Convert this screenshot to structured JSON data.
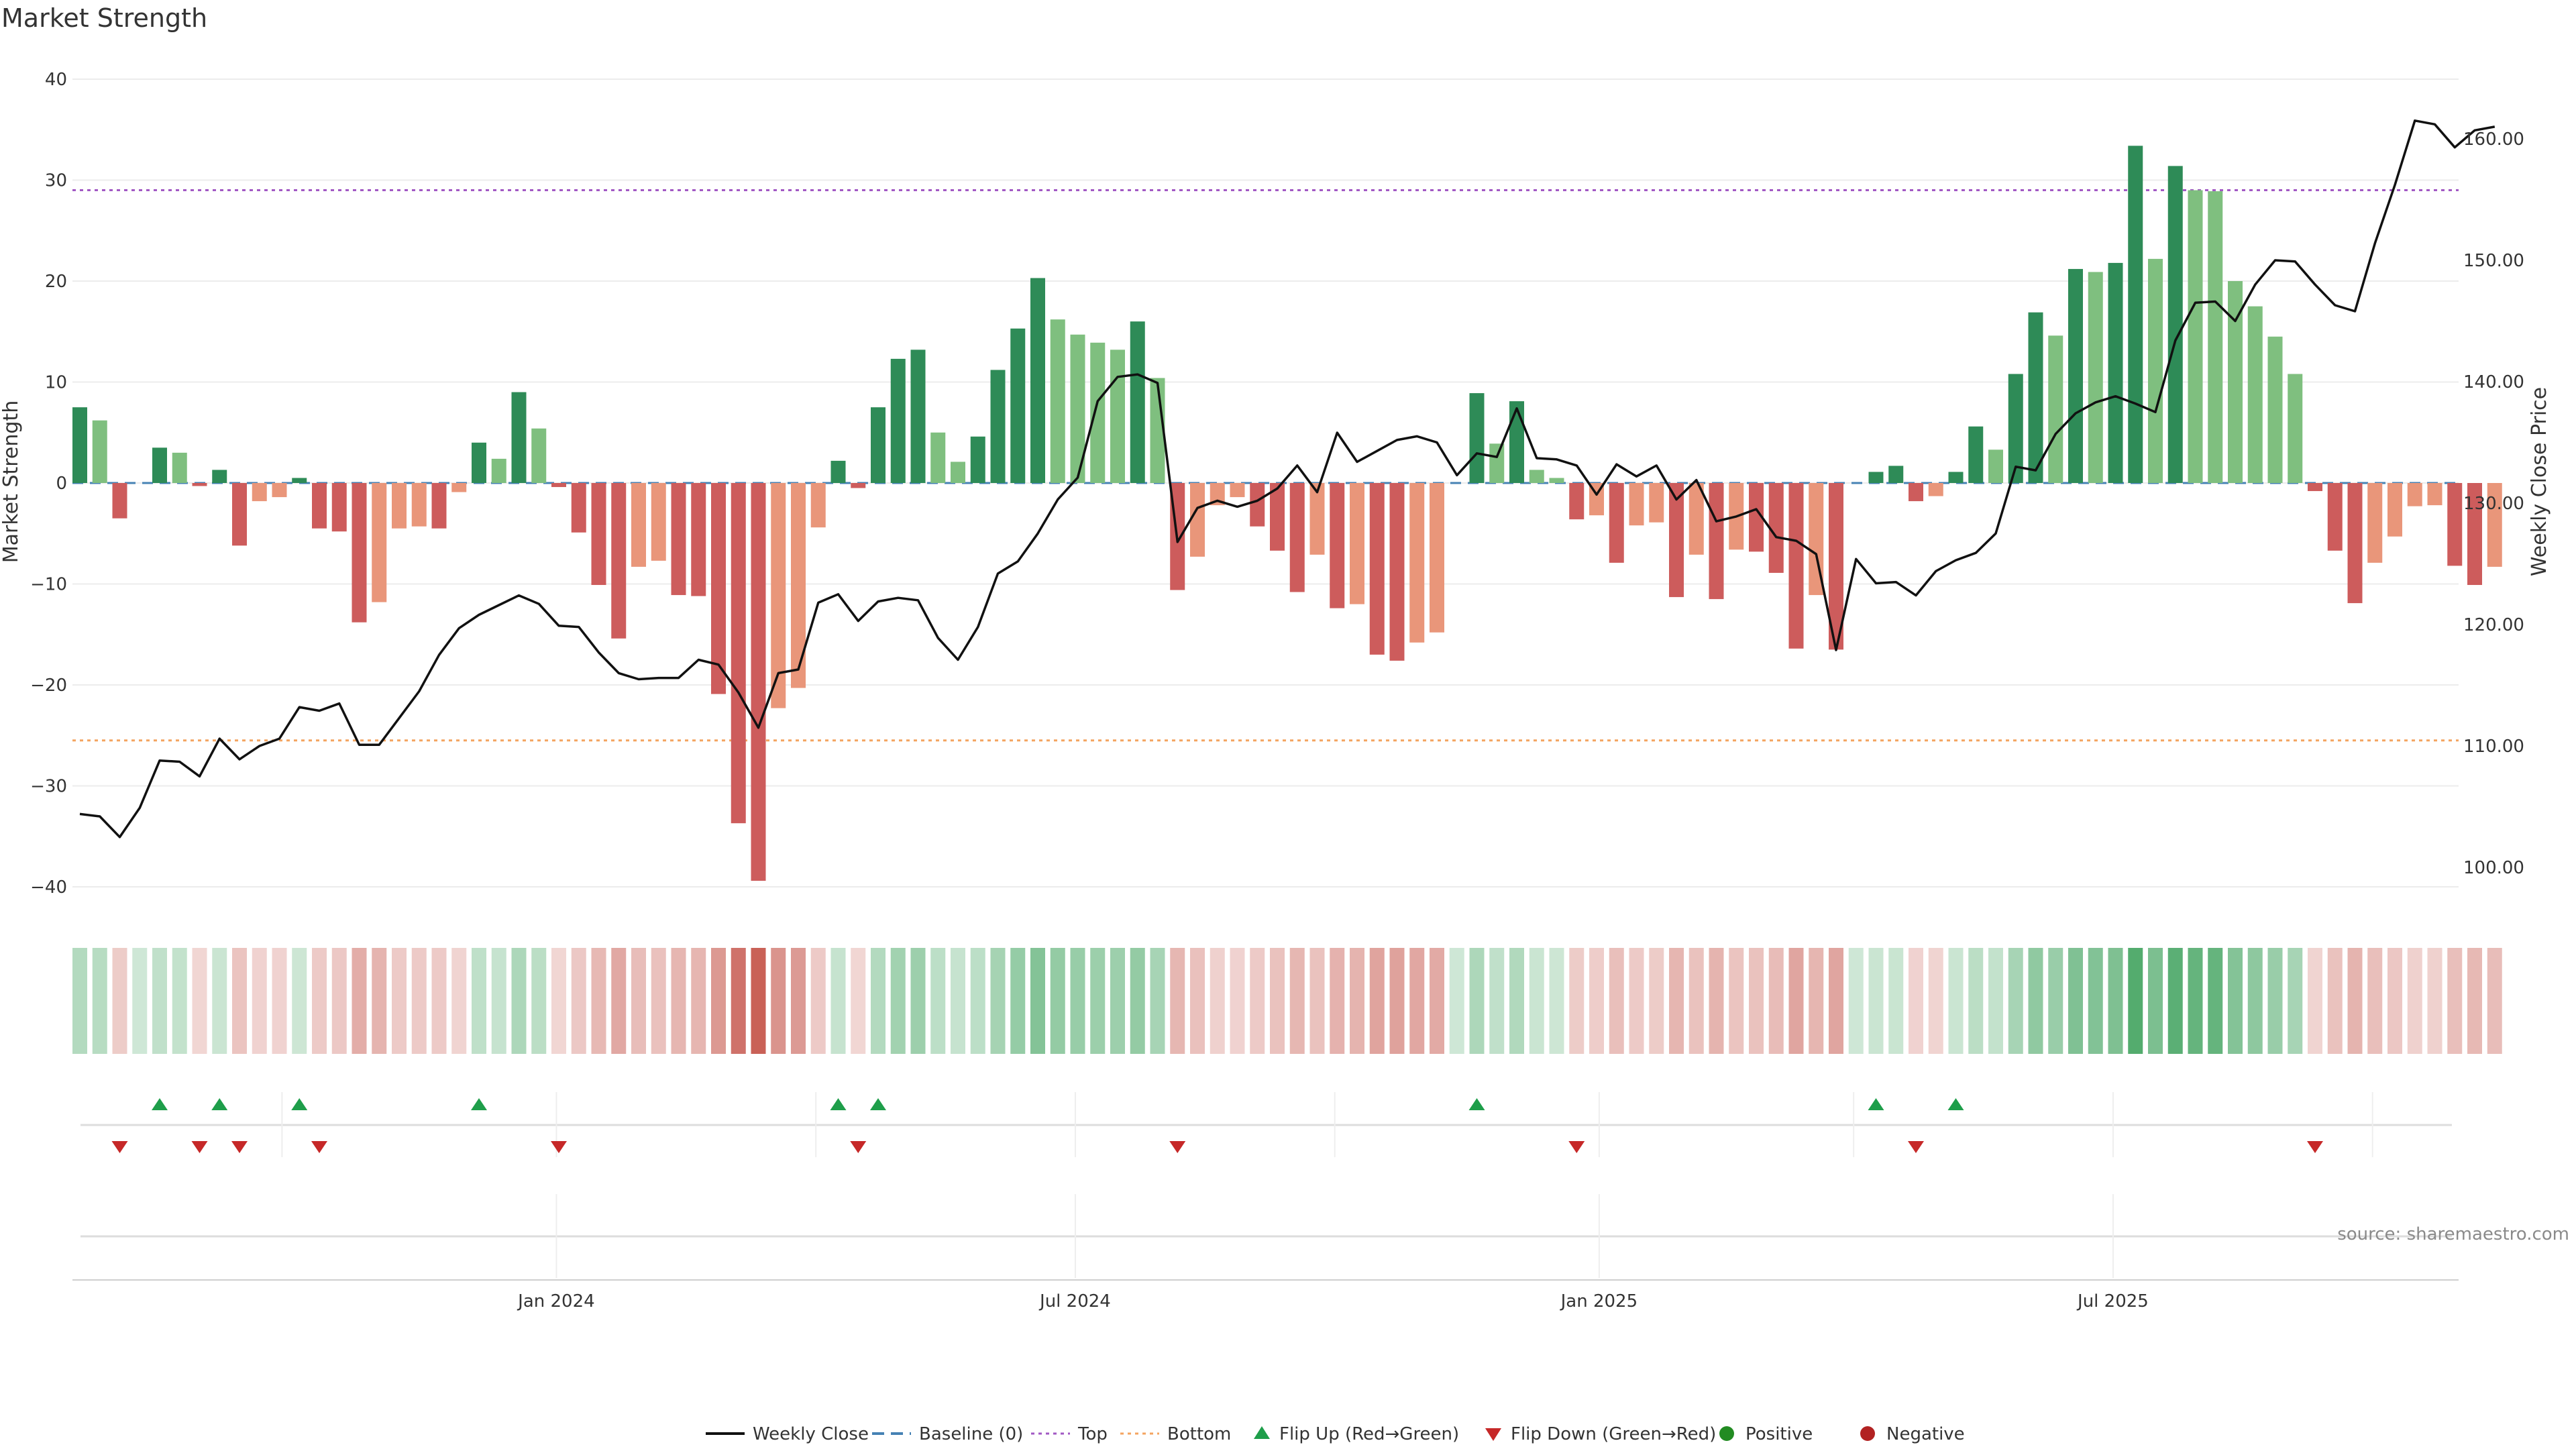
{
  "chart_data": {
    "type": "bar",
    "title": "Market Strength",
    "ylabel_left": "Market Strength",
    "ylabel_right": "Weekly Close Price",
    "ylim_left": [
      -43,
      43
    ],
    "yticks_left": [
      40,
      30,
      20,
      10,
      0,
      -10,
      -20,
      -30,
      -40
    ],
    "ytick_labels_left": [
      "40",
      "30",
      "20",
      "10",
      "0",
      "−10",
      "−20",
      "−30",
      "−40"
    ],
    "ylim_right": [
      95,
      165
    ],
    "yticks_right": [
      100,
      110,
      120,
      130,
      140,
      150,
      160
    ],
    "ytick_labels_right": [
      "100.00",
      "110.00",
      "120.00",
      "130.00",
      "140.00",
      "150.00",
      "160.00"
    ],
    "x_ticks": [
      {
        "label": "Jan 2024",
        "week": 24.25
      },
      {
        "label": "Jul 2024",
        "week": 50.25
      },
      {
        "label": "Jan 2025",
        "week": 76.5
      },
      {
        "label": "Jul 2025",
        "week": 102.25
      }
    ],
    "top_level": 29,
    "bottom_level": -25.5,
    "baseline": 0,
    "grid": true,
    "legend_position": "bottom",
    "source": "source: sharemaestro.com",
    "strength": [
      7.5,
      6.2,
      -3.5,
      0,
      3.5,
      3,
      -0.3,
      1.3,
      -6.2,
      -1.8,
      -1.4,
      0.5,
      -4.5,
      -4.8,
      -13.8,
      -11.8,
      -4.5,
      -4.3,
      -4.5,
      -0.9,
      4,
      2.4,
      9,
      5.4,
      -0.4,
      -4.9,
      -10.1,
      -15.4,
      -8.3,
      -7.7,
      -11.1,
      -11.2,
      -20.9,
      -33.7,
      -39.4,
      -22.3,
      -20.3,
      -4.4,
      2.2,
      -0.5,
      7.5,
      12.3,
      13.2,
      5,
      2.1,
      4.6,
      11.2,
      15.3,
      20.3,
      16.2,
      14.7,
      13.9,
      13.2,
      16,
      10.4,
      -10.6,
      -7.3,
      -2.2,
      -1.4,
      -4.3,
      -6.7,
      -10.8,
      -7.1,
      -12.4,
      -12,
      -17,
      -17.6,
      -15.8,
      -14.8,
      0,
      8.9,
      3.9,
      8.1,
      1.3,
      0.5,
      -3.6,
      -3.2,
      -7.9,
      -4.2,
      -3.9,
      -11.3,
      -7.1,
      -11.5,
      -6.6,
      -6.8,
      -8.9,
      -16.4,
      -11.1,
      -16.5,
      0,
      1.1,
      1.7,
      -1.8,
      -1.3,
      1.1,
      5.6,
      3.3,
      10.8,
      16.9,
      14.6,
      21.2,
      20.9,
      21.8,
      33.4,
      22.2,
      31.4,
      29,
      28.9,
      20,
      17.5,
      14.5,
      10.8,
      -0.8,
      -6.7,
      -11.9,
      -7.9,
      -5.3,
      -2.3,
      -2.2,
      -8.2,
      -10.1,
      -8.3
    ],
    "weekly_close": [
      104.4,
      104.2,
      102.5,
      104.9,
      108.8,
      108.7,
      107.5,
      110.6,
      108.9,
      110,
      110.6,
      113.2,
      112.9,
      113.5,
      110.1,
      110.1,
      112.3,
      114.5,
      117.5,
      119.7,
      120.8,
      121.6,
      122.4,
      121.7,
      119.9,
      119.8,
      117.7,
      116,
      115.5,
      115.6,
      115.6,
      117.1,
      116.7,
      114.4,
      111.5,
      116,
      116.3,
      121.8,
      122.5,
      120.3,
      121.9,
      122.2,
      122,
      118.9,
      117.1,
      119.8,
      124.2,
      125.2,
      127.5,
      130.3,
      132.1,
      138.4,
      140.4,
      140.6,
      139.9,
      126.8,
      129.6,
      130.2,
      129.7,
      130.2,
      131.2,
      133.1,
      130.9,
      135.8,
      133.4,
      134.3,
      135.2,
      135.5,
      135,
      132.3,
      134.1,
      133.8,
      137.8,
      133.7,
      133.6,
      133.1,
      130.7,
      133.2,
      132.2,
      133.1,
      130.3,
      131.9,
      128.5,
      128.9,
      129.5,
      127.2,
      126.9,
      125.8,
      117.9,
      125.4,
      123.4,
      123.5,
      122.4,
      124.4,
      125.3,
      125.9,
      127.5,
      133,
      132.7,
      135.7,
      137.4,
      138.3,
      138.8,
      138.2,
      137.5,
      143.4,
      146.5,
      146.6,
      145,
      148,
      150,
      149.9,
      148,
      146.3,
      145.8,
      151.4,
      156.2,
      161.5,
      161.2,
      159.3,
      160.7,
      161
    ]
  },
  "legend": [
    {
      "label": "Weekly Close",
      "kind": "line"
    },
    {
      "label": "Baseline (0)",
      "kind": "dash"
    },
    {
      "label": "Top",
      "kind": "dot-purple"
    },
    {
      "label": "Bottom",
      "kind": "dot-orange"
    },
    {
      "label": "Flip Up (Red→Green)",
      "kind": "tri-up"
    },
    {
      "label": "Flip Down (Green→Red)",
      "kind": "tri-down"
    },
    {
      "label": "Positive",
      "kind": "circle-green"
    },
    {
      "label": "Negative",
      "kind": "circle-red"
    }
  ],
  "colors": {
    "strong_green": "#2e8b57",
    "light_green": "#7fbf7f",
    "strong_red": "#cd5c5c",
    "light_red": "#e9967a",
    "line": "#111111",
    "baseline": "#4682b4",
    "top": "#a259c4",
    "bottom": "#f4a460",
    "flip_up": "#1e9e4a",
    "flip_down": "#c62828",
    "positive": "#228b22",
    "negative": "#b22222"
  }
}
